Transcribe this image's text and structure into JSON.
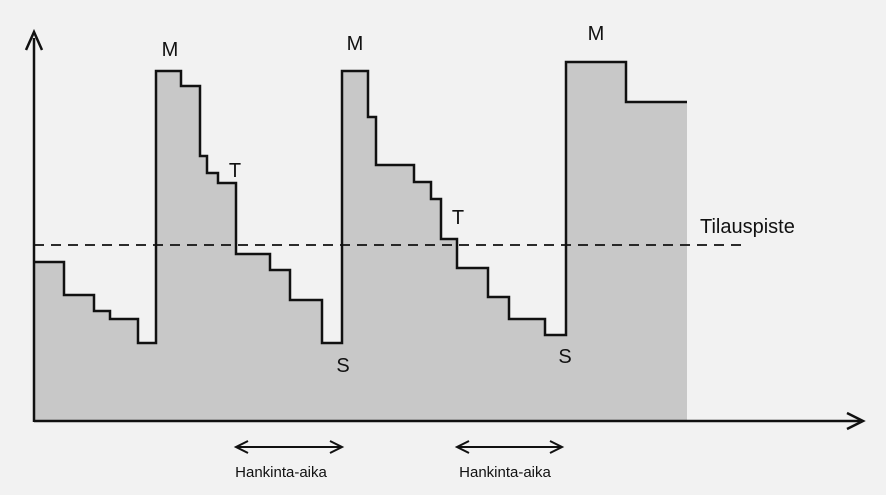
{
  "diagram": {
    "title": "",
    "colors": {
      "background": "#f2f2f2",
      "fill": "#c8c8c8",
      "stroke": "#111111"
    },
    "reorder_point_label": "Tilauspiste",
    "max_labels": [
      "M",
      "M",
      "M"
    ],
    "reorder_labels": [
      "T",
      "T"
    ],
    "safety_labels": [
      "S",
      "S"
    ],
    "lead_time_labels": [
      "Hankinta-aika",
      "Hankinta-aika"
    ]
  }
}
